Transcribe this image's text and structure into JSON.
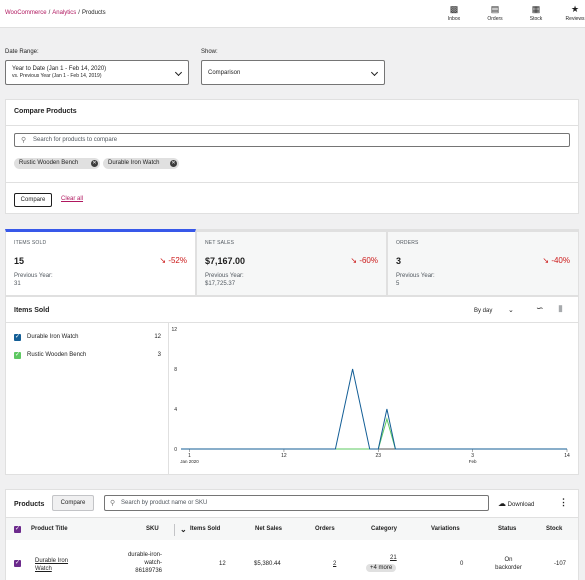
{
  "header": {
    "breadcrumb": [
      "WooCommerce",
      "Analytics",
      "Products"
    ],
    "activity": [
      {
        "label": "Inbox",
        "icon": "inbox-icon"
      },
      {
        "label": "Orders",
        "icon": "orders-icon"
      },
      {
        "label": "Stock",
        "icon": "stock-icon"
      },
      {
        "label": "Reviews",
        "icon": "reviews-icon"
      }
    ]
  },
  "filters": {
    "date_range_label": "Date Range:",
    "date_range_value_1": "Year to Date (Jan 1 - Feb 14, 2020)",
    "date_range_value_2": "vs. Previous Year (Jan 1 - Feb 14, 2019)",
    "show_label": "Show:",
    "show_value": "Comparison"
  },
  "compare": {
    "title": "Compare Products",
    "search_placeholder": "Search for products to compare",
    "chips": [
      "Rustic Wooden Bench",
      "Durable Iron Watch"
    ],
    "compare_button": "Compare",
    "clear_all": "Clear all"
  },
  "summary": [
    {
      "title": "ITEMS SOLD",
      "value": "15",
      "delta": "-52%",
      "prev_label": "Previous Year:",
      "prev_value": "31"
    },
    {
      "title": "NET SALES",
      "value": "$7,167.00",
      "delta": "-60%",
      "prev_label": "Previous Year:",
      "prev_value": "$17,725.37"
    },
    {
      "title": "ORDERS",
      "value": "3",
      "delta": "-40%",
      "prev_label": "Previous Year:",
      "prev_value": "5"
    }
  ],
  "chart_panel": {
    "title": "Items Sold",
    "interval": "By day",
    "legend": [
      {
        "label": "Durable Iron Watch",
        "value": "12",
        "color": "#135e96"
      },
      {
        "label": "Rustic Wooden Bench",
        "value": "3",
        "color": "#5ec862"
      }
    ]
  },
  "chart_data": {
    "type": "line",
    "ylim": [
      0,
      12
    ],
    "yticks": [
      "12",
      "8",
      "4",
      "0"
    ],
    "ytick_values": [
      12,
      8,
      4,
      0
    ],
    "xlim": [
      0,
      45
    ],
    "xticks": [
      {
        "x": 1,
        "label": "1",
        "sub": "Jan 2020"
      },
      {
        "x": 12,
        "label": "12",
        "sub": ""
      },
      {
        "x": 23,
        "label": "23",
        "sub": ""
      },
      {
        "x": 34,
        "label": "3",
        "sub": "Feb"
      },
      {
        "x": 45,
        "label": "14",
        "sub": ""
      }
    ],
    "series": [
      {
        "name": "Durable Iron Watch",
        "color": "#135e96",
        "points": [
          [
            0,
            0
          ],
          [
            18,
            0
          ],
          [
            20,
            8
          ],
          [
            22,
            0
          ],
          [
            23,
            0
          ],
          [
            24,
            4
          ],
          [
            25,
            0
          ],
          [
            45,
            0
          ]
        ]
      },
      {
        "name": "Rustic Wooden Bench",
        "color": "#5ec862",
        "points": [
          [
            0,
            0
          ],
          [
            23,
            0
          ],
          [
            24,
            3
          ],
          [
            25,
            0
          ],
          [
            45,
            0
          ]
        ]
      }
    ]
  },
  "table": {
    "title": "Products",
    "compare_button": "Compare",
    "search_placeholder": "Search by product name or SKU",
    "download": "Download",
    "columns": [
      "Product Title",
      "SKU",
      "Items Sold",
      "Net Sales",
      "Orders",
      "Category",
      "Variations",
      "Status",
      "Stock"
    ],
    "row": {
      "title_1": "Durable Iron",
      "title_2": "Watch",
      "sku_1": "durable-iron-",
      "sku_2": "watch-",
      "sku_3": "86189736",
      "items_sold": "12",
      "net_sales": "$5,380.44",
      "orders": "2",
      "category_link": "21",
      "category_more": "+4 more",
      "variations": "0",
      "status_1": "On",
      "status_2": "backorder",
      "stock": "-107"
    }
  }
}
